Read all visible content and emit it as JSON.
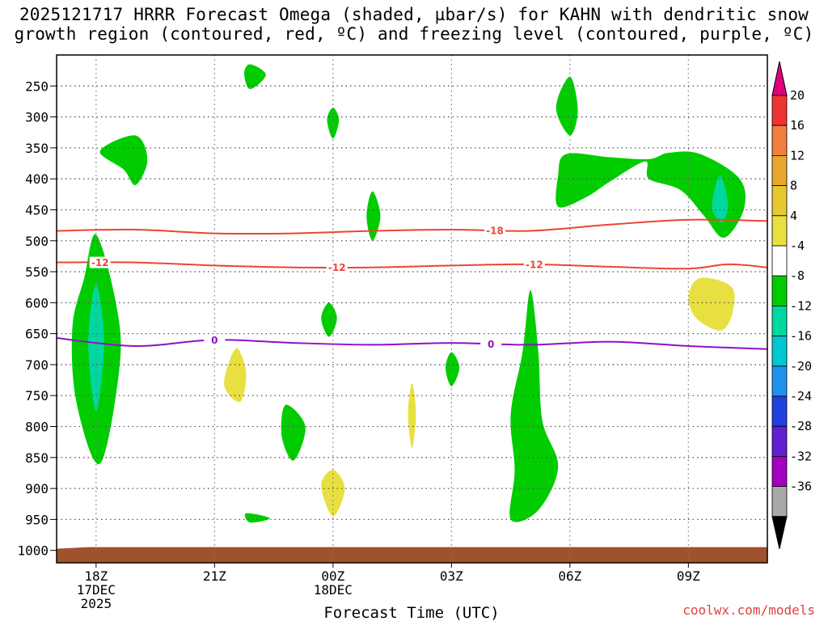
{
  "chart_data": {
    "type": "time-height contour",
    "title_line1": "2025121717 HRRR Forecast Omega (shaded, µbar/s) for KAHN with dendritic snow",
    "title_line2": "growth region (contoured, red, ºC) and freezing level (contoured, purple, ºC)",
    "xlabel": "Forecast Time (UTC)",
    "x_ticks": [
      {
        "hour": 0,
        "label": "18Z",
        "sub1": "17DEC",
        "sub2": "2025"
      },
      {
        "hour": 3,
        "label": "21Z",
        "sub1": "",
        "sub2": ""
      },
      {
        "hour": 6,
        "label": "00Z",
        "sub1": "18DEC",
        "sub2": ""
      },
      {
        "hour": 9,
        "label": "03Z",
        "sub1": "",
        "sub2": ""
      },
      {
        "hour": 12,
        "label": "06Z",
        "sub1": "",
        "sub2": ""
      },
      {
        "hour": 15,
        "label": "09Z",
        "sub1": "",
        "sub2": ""
      }
    ],
    "x_range_hours": [
      -1,
      17
    ],
    "y_levels_hpa": [
      250,
      300,
      350,
      400,
      450,
      500,
      550,
      600,
      650,
      700,
      750,
      800,
      850,
      900,
      950,
      1000
    ],
    "y_range_hpa": [
      200,
      1020
    ],
    "contours": {
      "dgz_upper": {
        "label": "-18",
        "color": "#ee4433",
        "label_hour": 10.1,
        "points": [
          [
            -1,
            484
          ],
          [
            1,
            482
          ],
          [
            3,
            488
          ],
          [
            5,
            488
          ],
          [
            7,
            484
          ],
          [
            9,
            482
          ],
          [
            11,
            484
          ],
          [
            13,
            474
          ],
          [
            15,
            466
          ],
          [
            17,
            468
          ]
        ]
      },
      "dgz_lower": {
        "label": "-12",
        "color": "#ee4433",
        "label_hours": [
          0.1,
          6.1,
          11.1
        ],
        "points": [
          [
            -1,
            535
          ],
          [
            1,
            535
          ],
          [
            3,
            540
          ],
          [
            5,
            543
          ],
          [
            7,
            543
          ],
          [
            9,
            540
          ],
          [
            11,
            538
          ],
          [
            13,
            542
          ],
          [
            15,
            545
          ],
          [
            16,
            538
          ],
          [
            17,
            543
          ]
        ]
      },
      "freezing": {
        "label": "0",
        "color": "#9010c8",
        "label_hours": [
          3,
          10
        ],
        "points": [
          [
            -1,
            657
          ],
          [
            1,
            670
          ],
          [
            3,
            660
          ],
          [
            5,
            665
          ],
          [
            7,
            668
          ],
          [
            9,
            665
          ],
          [
            11,
            668
          ],
          [
            13,
            663
          ],
          [
            15,
            670
          ],
          [
            17,
            675
          ]
        ]
      }
    },
    "omega_regions": [
      {
        "level": -8,
        "color": "#00cc00",
        "points": [
          [
            3.9,
            215
          ],
          [
            4.3,
            232
          ],
          [
            3.9,
            255
          ],
          [
            3.75,
            230
          ]
        ]
      },
      {
        "level": -8,
        "color": "#00cc00",
        "points": [
          [
            0.1,
            355
          ],
          [
            1,
            330
          ],
          [
            1.3,
            370
          ],
          [
            1.0,
            410
          ],
          [
            0.7,
            385
          ]
        ]
      },
      {
        "level": -8,
        "color": "#00cc00",
        "points": [
          [
            6.0,
            285
          ],
          [
            6.15,
            305
          ],
          [
            6.0,
            335
          ],
          [
            5.85,
            305
          ]
        ]
      },
      {
        "level": -8,
        "color": "#00cc00",
        "points": [
          [
            12.0,
            235
          ],
          [
            12.2,
            290
          ],
          [
            12.0,
            330
          ],
          [
            11.65,
            285
          ]
        ]
      },
      {
        "level": -8,
        "color": "#00cc00",
        "points": [
          [
            11.7,
            395
          ],
          [
            11.9,
            360
          ],
          [
            13.0,
            365
          ],
          [
            14.0,
            368
          ],
          [
            14.5,
            358
          ],
          [
            15.3,
            360
          ],
          [
            16.3,
            400
          ],
          [
            16.4,
            450
          ],
          [
            15.9,
            495
          ],
          [
            15.4,
            460
          ],
          [
            14.8,
            418
          ],
          [
            14.0,
            400
          ],
          [
            13.9,
            372
          ],
          [
            13.0,
            405
          ],
          [
            12.4,
            430
          ],
          [
            11.7,
            445
          ]
        ]
      },
      {
        "level": -8,
        "color": "#00cc00",
        "points": [
          [
            7.0,
            420
          ],
          [
            7.2,
            460
          ],
          [
            7.0,
            500
          ],
          [
            6.85,
            460
          ]
        ]
      },
      {
        "level": -8,
        "color": "#00cc00",
        "points": [
          [
            0.0,
            490
          ],
          [
            0.5,
            600
          ],
          [
            0.6,
            700
          ],
          [
            0.1,
            860
          ],
          [
            -0.5,
            760
          ],
          [
            -0.6,
            640
          ],
          [
            -0.3,
            560
          ]
        ]
      },
      {
        "level": -8,
        "color": "#00cc00",
        "points": [
          [
            5.9,
            600
          ],
          [
            6.1,
            625
          ],
          [
            5.9,
            655
          ],
          [
            5.7,
            625
          ]
        ]
      },
      {
        "level": -8,
        "color": "#00cc00",
        "points": [
          [
            9.0,
            680
          ],
          [
            9.2,
            705
          ],
          [
            9.0,
            735
          ],
          [
            8.85,
            705
          ]
        ]
      },
      {
        "level": -8,
        "color": "#00cc00",
        "points": [
          [
            4.8,
            765
          ],
          [
            5.3,
            800
          ],
          [
            5.0,
            855
          ],
          [
            4.7,
            815
          ]
        ]
      },
      {
        "level": -8,
        "color": "#00cc00",
        "points": [
          [
            11.0,
            580
          ],
          [
            11.2,
            680
          ],
          [
            11.3,
            790
          ],
          [
            11.7,
            865
          ],
          [
            11.2,
            935
          ],
          [
            10.5,
            950
          ],
          [
            10.6,
            870
          ],
          [
            10.5,
            780
          ],
          [
            10.8,
            680
          ]
        ]
      },
      {
        "level": -8,
        "color": "#00cc00",
        "points": [
          [
            3.8,
            940
          ],
          [
            4.4,
            948
          ],
          [
            3.9,
            955
          ]
        ]
      },
      {
        "level": -12,
        "color": "#00d8a0",
        "points": [
          [
            0.0,
            570
          ],
          [
            0.2,
            665
          ],
          [
            0.0,
            775
          ],
          [
            -0.2,
            665
          ]
        ]
      },
      {
        "level": -12,
        "color": "#00d8a0",
        "points": [
          [
            15.8,
            395
          ],
          [
            16.0,
            440
          ],
          [
            15.85,
            470
          ],
          [
            15.6,
            445
          ]
        ]
      },
      {
        "level": 4,
        "color": "#e8e040",
        "points": [
          [
            3.6,
            675
          ],
          [
            3.8,
            715
          ],
          [
            3.65,
            760
          ],
          [
            3.25,
            735
          ],
          [
            3.4,
            690
          ]
        ]
      },
      {
        "level": 4,
        "color": "#e8e040",
        "points": [
          [
            6.0,
            870
          ],
          [
            6.3,
            900
          ],
          [
            6.0,
            945
          ],
          [
            5.7,
            895
          ]
        ]
      },
      {
        "level": 4,
        "color": "#e8e040",
        "points": [
          [
            8.0,
            730
          ],
          [
            8.1,
            780
          ],
          [
            8.0,
            835
          ],
          [
            7.9,
            780
          ]
        ]
      },
      {
        "level": 4,
        "color": "#e8e040",
        "points": [
          [
            15.3,
            560
          ],
          [
            16.1,
            575
          ],
          [
            16.1,
            620
          ],
          [
            15.8,
            645
          ],
          [
            15.2,
            625
          ],
          [
            15.0,
            590
          ]
        ]
      }
    ],
    "terrain": {
      "color": "#a0522d",
      "top_hpa": 1000
    },
    "colorbar": {
      "labels": [
        "20",
        "16",
        "12",
        "8",
        "4",
        "-4",
        "-8",
        "-12",
        "-16",
        "-20",
        "-24",
        "-28",
        "-32",
        "-36"
      ],
      "colors": [
        "#ee3333",
        "#f08040",
        "#e8a830",
        "#e8c830",
        "#e8e040",
        "#ffffff",
        "#00cc00",
        "#00d8a0",
        "#00c8d0",
        "#2090f0",
        "#2040e0",
        "#6020d0",
        "#a000c0",
        "#a8a8a8"
      ],
      "top_arrow_color": "#e0007a",
      "bottom_arrow_color": "#000000"
    }
  },
  "credit": "coolwx.com/models"
}
